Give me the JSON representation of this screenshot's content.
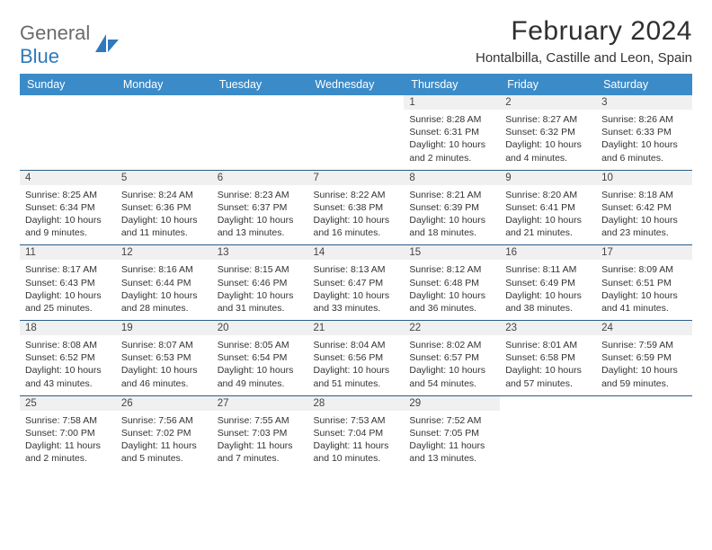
{
  "logo": {
    "word1": "General",
    "word2": "Blue"
  },
  "title": "February 2024",
  "location": "Hontalbilla, Castille and Leon, Spain",
  "colors": {
    "header_bg": "#3b8bc9",
    "header_text": "#ffffff",
    "daynum_bg": "#f0f0f0",
    "row_border": "#2b5e88",
    "logo_gray": "#6b6b6b",
    "logo_blue": "#2f79bd"
  },
  "weekdays": [
    "Sunday",
    "Monday",
    "Tuesday",
    "Wednesday",
    "Thursday",
    "Friday",
    "Saturday"
  ],
  "weeks": [
    [
      null,
      null,
      null,
      null,
      {
        "n": "1",
        "sunrise": "Sunrise: 8:28 AM",
        "sunset": "Sunset: 6:31 PM",
        "daylight": "Daylight: 10 hours and 2 minutes."
      },
      {
        "n": "2",
        "sunrise": "Sunrise: 8:27 AM",
        "sunset": "Sunset: 6:32 PM",
        "daylight": "Daylight: 10 hours and 4 minutes."
      },
      {
        "n": "3",
        "sunrise": "Sunrise: 8:26 AM",
        "sunset": "Sunset: 6:33 PM",
        "daylight": "Daylight: 10 hours and 6 minutes."
      }
    ],
    [
      {
        "n": "4",
        "sunrise": "Sunrise: 8:25 AM",
        "sunset": "Sunset: 6:34 PM",
        "daylight": "Daylight: 10 hours and 9 minutes."
      },
      {
        "n": "5",
        "sunrise": "Sunrise: 8:24 AM",
        "sunset": "Sunset: 6:36 PM",
        "daylight": "Daylight: 10 hours and 11 minutes."
      },
      {
        "n": "6",
        "sunrise": "Sunrise: 8:23 AM",
        "sunset": "Sunset: 6:37 PM",
        "daylight": "Daylight: 10 hours and 13 minutes."
      },
      {
        "n": "7",
        "sunrise": "Sunrise: 8:22 AM",
        "sunset": "Sunset: 6:38 PM",
        "daylight": "Daylight: 10 hours and 16 minutes."
      },
      {
        "n": "8",
        "sunrise": "Sunrise: 8:21 AM",
        "sunset": "Sunset: 6:39 PM",
        "daylight": "Daylight: 10 hours and 18 minutes."
      },
      {
        "n": "9",
        "sunrise": "Sunrise: 8:20 AM",
        "sunset": "Sunset: 6:41 PM",
        "daylight": "Daylight: 10 hours and 21 minutes."
      },
      {
        "n": "10",
        "sunrise": "Sunrise: 8:18 AM",
        "sunset": "Sunset: 6:42 PM",
        "daylight": "Daylight: 10 hours and 23 minutes."
      }
    ],
    [
      {
        "n": "11",
        "sunrise": "Sunrise: 8:17 AM",
        "sunset": "Sunset: 6:43 PM",
        "daylight": "Daylight: 10 hours and 25 minutes."
      },
      {
        "n": "12",
        "sunrise": "Sunrise: 8:16 AM",
        "sunset": "Sunset: 6:44 PM",
        "daylight": "Daylight: 10 hours and 28 minutes."
      },
      {
        "n": "13",
        "sunrise": "Sunrise: 8:15 AM",
        "sunset": "Sunset: 6:46 PM",
        "daylight": "Daylight: 10 hours and 31 minutes."
      },
      {
        "n": "14",
        "sunrise": "Sunrise: 8:13 AM",
        "sunset": "Sunset: 6:47 PM",
        "daylight": "Daylight: 10 hours and 33 minutes."
      },
      {
        "n": "15",
        "sunrise": "Sunrise: 8:12 AM",
        "sunset": "Sunset: 6:48 PM",
        "daylight": "Daylight: 10 hours and 36 minutes."
      },
      {
        "n": "16",
        "sunrise": "Sunrise: 8:11 AM",
        "sunset": "Sunset: 6:49 PM",
        "daylight": "Daylight: 10 hours and 38 minutes."
      },
      {
        "n": "17",
        "sunrise": "Sunrise: 8:09 AM",
        "sunset": "Sunset: 6:51 PM",
        "daylight": "Daylight: 10 hours and 41 minutes."
      }
    ],
    [
      {
        "n": "18",
        "sunrise": "Sunrise: 8:08 AM",
        "sunset": "Sunset: 6:52 PM",
        "daylight": "Daylight: 10 hours and 43 minutes."
      },
      {
        "n": "19",
        "sunrise": "Sunrise: 8:07 AM",
        "sunset": "Sunset: 6:53 PM",
        "daylight": "Daylight: 10 hours and 46 minutes."
      },
      {
        "n": "20",
        "sunrise": "Sunrise: 8:05 AM",
        "sunset": "Sunset: 6:54 PM",
        "daylight": "Daylight: 10 hours and 49 minutes."
      },
      {
        "n": "21",
        "sunrise": "Sunrise: 8:04 AM",
        "sunset": "Sunset: 6:56 PM",
        "daylight": "Daylight: 10 hours and 51 minutes."
      },
      {
        "n": "22",
        "sunrise": "Sunrise: 8:02 AM",
        "sunset": "Sunset: 6:57 PM",
        "daylight": "Daylight: 10 hours and 54 minutes."
      },
      {
        "n": "23",
        "sunrise": "Sunrise: 8:01 AM",
        "sunset": "Sunset: 6:58 PM",
        "daylight": "Daylight: 10 hours and 57 minutes."
      },
      {
        "n": "24",
        "sunrise": "Sunrise: 7:59 AM",
        "sunset": "Sunset: 6:59 PM",
        "daylight": "Daylight: 10 hours and 59 minutes."
      }
    ],
    [
      {
        "n": "25",
        "sunrise": "Sunrise: 7:58 AM",
        "sunset": "Sunset: 7:00 PM",
        "daylight": "Daylight: 11 hours and 2 minutes."
      },
      {
        "n": "26",
        "sunrise": "Sunrise: 7:56 AM",
        "sunset": "Sunset: 7:02 PM",
        "daylight": "Daylight: 11 hours and 5 minutes."
      },
      {
        "n": "27",
        "sunrise": "Sunrise: 7:55 AM",
        "sunset": "Sunset: 7:03 PM",
        "daylight": "Daylight: 11 hours and 7 minutes."
      },
      {
        "n": "28",
        "sunrise": "Sunrise: 7:53 AM",
        "sunset": "Sunset: 7:04 PM",
        "daylight": "Daylight: 11 hours and 10 minutes."
      },
      {
        "n": "29",
        "sunrise": "Sunrise: 7:52 AM",
        "sunset": "Sunset: 7:05 PM",
        "daylight": "Daylight: 11 hours and 13 minutes."
      },
      null,
      null
    ]
  ]
}
